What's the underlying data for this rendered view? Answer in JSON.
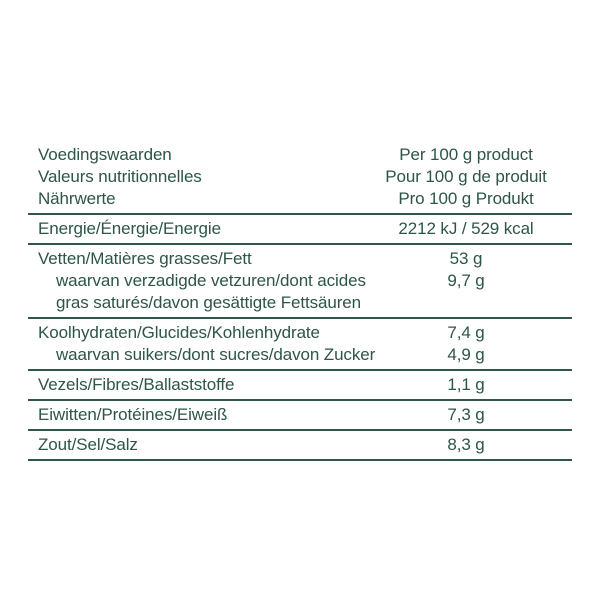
{
  "page": {
    "background_color": "#ffffff",
    "text_color": "#2d5549",
    "rule_color": "#2f5649"
  },
  "table": {
    "header": {
      "labels": [
        "Voedingswaarden",
        "Valeurs nutritionnelles",
        "Nährwerte"
      ],
      "values": [
        "Per 100 g product",
        "Pour 100 g de produit",
        "Pro 100 g Produkt"
      ]
    },
    "rows": [
      {
        "name": "energy",
        "lines": [
          {
            "text": "Energie/Énergie/Energie",
            "indent": false,
            "value": "2212 kJ / 529 kcal"
          }
        ]
      },
      {
        "name": "fat",
        "lines": [
          {
            "text": "Vetten/Matières grasses/Fett",
            "indent": false,
            "value": "53 g"
          },
          {
            "text": "waarvan verzadigde vetzuren/dont acides",
            "indent": true,
            "value": "9,7 g"
          },
          {
            "text": "gras saturés/davon gesättigte Fettsäuren",
            "indent": true,
            "value": ""
          }
        ]
      },
      {
        "name": "carbohydrates",
        "lines": [
          {
            "text": "Koolhydraten/Glucides/Kohlenhydrate",
            "indent": false,
            "value": "7,4 g"
          },
          {
            "text": "waarvan suikers/dont sucres/davon Zucker",
            "indent": true,
            "value": "4,9 g"
          }
        ]
      },
      {
        "name": "fibre",
        "lines": [
          {
            "text": "Vezels/Fibres/Ballaststoffe",
            "indent": false,
            "value": "1,1 g"
          }
        ]
      },
      {
        "name": "protein",
        "lines": [
          {
            "text": "Eiwitten/Protéines/Eiweiß",
            "indent": false,
            "value": "7,3 g"
          }
        ]
      },
      {
        "name": "salt",
        "lines": [
          {
            "text": "Zout/Sel/Salz",
            "indent": false,
            "value": "8,3 g"
          }
        ]
      }
    ]
  }
}
